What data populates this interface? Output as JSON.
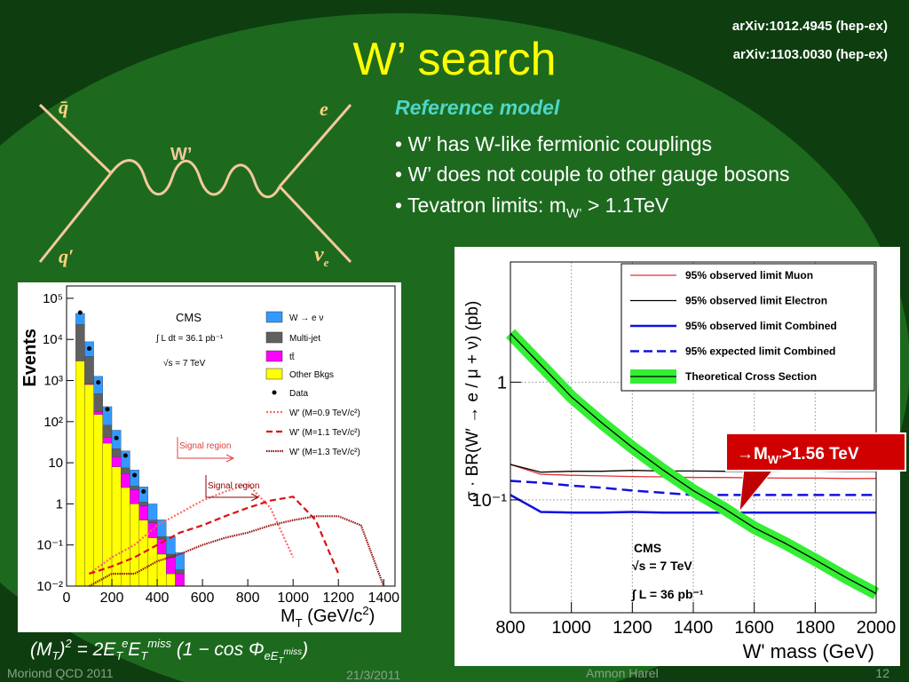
{
  "slide": {
    "title": "W’ search",
    "refs": [
      "arXiv:1012.4945 (hep-ex)",
      "arXiv:1103.0030 (hep-ex)"
    ],
    "diagram": {
      "q_bar": "q̄",
      "e": "e",
      "q_prime": "q′",
      "nu": "ν",
      "nu_sub": "e",
      "boson": "W’"
    },
    "reference_heading": "Reference model",
    "bullets": [
      [
        "•  W’ has W-like fermionic couplings"
      ],
      [
        "• W’ does not couple to other gauge bosons"
      ],
      [
        "• Tevatron limits: m",
        "W’",
        " > 1.1TeV"
      ]
    ],
    "callout": [
      "→M",
      "W’",
      ">1.56 TeV"
    ],
    "formula": [
      "(M",
      "T",
      ")",
      "2",
      " = 2E",
      "T",
      "e",
      "E",
      "T",
      "miss",
      " (1 − cos Φ",
      "eE",
      "T",
      "miss",
      ")"
    ],
    "footer": {
      "conference": "Moriond QCD 2011",
      "date": "21/3/2011",
      "author": "Amnon Harel",
      "page": "12"
    }
  },
  "plots": [
    {
      "type": "histogram",
      "stacked": true,
      "log_y": true,
      "ylabel": "Events",
      "xlabel": [
        "M",
        "T",
        " (GeV/c",
        "2",
        ")"
      ],
      "xlim": [
        0,
        1450
      ],
      "ylim": [
        0.01,
        200000
      ],
      "xticks": [
        0,
        200,
        400,
        600,
        800,
        1000,
        1200,
        1400
      ],
      "yticks": [
        {
          "value": 0.01,
          "label": "10⁻²"
        },
        {
          "value": 0.1,
          "label": "10⁻¹"
        },
        1,
        10,
        {
          "value": 100,
          "label": "10²"
        },
        {
          "value": 1000,
          "label": "10³"
        },
        {
          "value": 10000,
          "label": "10⁴"
        },
        {
          "value": 100000,
          "label": "10⁵"
        }
      ],
      "bins": [
        40,
        80,
        120,
        160,
        200,
        240,
        280,
        320,
        360,
        400,
        440,
        480,
        520
      ],
      "series": [
        {
          "name": "Other Bkgs",
          "color": "#ffff00",
          "values": [
            3000,
            800,
            150,
            30,
            8,
            2.5,
            1,
            0.4,
            0.15,
            0.06,
            0.02,
            0.01
          ]
        },
        {
          "name": "tt̄",
          "color": "#ff00ff",
          "values": [
            50,
            40,
            25,
            12,
            6,
            3,
            1.2,
            0.5,
            0.2,
            0.08,
            0.03,
            0.01
          ]
        },
        {
          "name": "Multi-jet",
          "color": "#606060",
          "values": [
            20000,
            3000,
            300,
            40,
            8,
            2,
            0.5,
            0.2,
            0.05,
            0.02,
            0.01,
            0.005
          ]
        },
        {
          "name": "W → e ν",
          "color": "#3399ff",
          "values": [
            20000,
            5000,
            800,
            150,
            40,
            12,
            4,
            1.5,
            0.6,
            0.25,
            0.1,
            0.04
          ]
        }
      ],
      "data": {
        "name": "Data",
        "x": [
          60,
          100,
          140,
          180,
          220,
          260,
          300,
          340
        ],
        "values": [
          45000,
          6000,
          900,
          200,
          40,
          15,
          5,
          2
        ]
      },
      "signal_x": [
        100,
        200,
        300,
        400,
        500,
        600,
        700,
        800,
        900,
        1000,
        1100,
        1200,
        1300,
        1400
      ],
      "signals": [
        {
          "name": "W' (M=0.9 TeV/c²)",
          "color": "#ff6666",
          "values": [
            0.02,
            0.05,
            0.1,
            0.3,
            0.6,
            1.2,
            2,
            3,
            0.8,
            0.05,
            null,
            null,
            null,
            null
          ]
        },
        {
          "name": "W' (M=1.1 TeV/c²)",
          "color": "#dd1111",
          "values": [
            0.02,
            0.03,
            0.05,
            0.1,
            0.2,
            0.3,
            0.5,
            0.8,
            1.2,
            1.5,
            0.4,
            0.02,
            null,
            null
          ]
        },
        {
          "name": "W' (M=1.3 TeV/c²)",
          "color": "#991111",
          "values": [
            0.01,
            0.02,
            0.02,
            0.04,
            0.06,
            0.1,
            0.15,
            0.2,
            0.3,
            0.4,
            0.5,
            0.5,
            0.3,
            0.01
          ]
        }
      ],
      "annotations": [
        "CMS",
        "∫ L dt = 36.1 pb⁻¹",
        "√s = 7 TeV",
        "Signal region",
        "Signal region"
      ]
    },
    {
      "type": "line",
      "log_y": true,
      "grid": true,
      "ylabel": "σ · BR(W′ → e / μ + ν) (pb)",
      "xlabel": "W' mass (GeV)",
      "xlim": [
        800,
        2000
      ],
      "ylim": [
        0.011,
        10.5
      ],
      "xticks": [
        800,
        1000,
        1200,
        1400,
        1600,
        1800,
        2000
      ],
      "yticks": [
        {
          "value": 0.1,
          "label": "10⁻¹"
        },
        1
      ],
      "x": [
        800,
        900,
        1000,
        1100,
        1200,
        1300,
        1400,
        1500,
        1600,
        1700,
        1800,
        1900,
        2000
      ],
      "series": [
        {
          "name": "95% observed limit Muon",
          "color": "#e03030",
          "values": [
            0.2,
            0.165,
            0.162,
            0.16,
            0.158,
            0.157,
            0.155,
            0.155,
            0.154,
            0.153,
            0.153,
            0.152,
            0.152
          ]
        },
        {
          "name": "95% observed limit Electron",
          "color": "#000000",
          "values": [
            0.2,
            0.172,
            0.175,
            0.175,
            0.178,
            0.176,
            0.176,
            0.175,
            0.175,
            0.176,
            0.176,
            0.175,
            0.175
          ]
        },
        {
          "name": "95% observed limit Combined",
          "color": "#1010e0",
          "values": [
            0.11,
            0.079,
            0.078,
            0.078,
            0.079,
            0.078,
            0.078,
            0.078,
            0.078,
            0.078,
            0.078,
            0.078,
            0.078
          ]
        },
        {
          "name": "95% expected limit Combined",
          "color": "#1010e0",
          "dashed": true,
          "values": [
            0.145,
            0.14,
            0.132,
            0.127,
            0.12,
            0.115,
            0.11,
            0.11,
            0.11,
            0.11,
            0.11,
            0.11,
            0.11
          ]
        },
        {
          "name": "Theoretical Cross Section",
          "color": "#000000",
          "band_color": "#33ee33",
          "values": [
            2.6,
            1.4,
            0.75,
            0.45,
            0.28,
            0.18,
            0.12,
            0.085,
            0.058,
            0.043,
            0.031,
            0.022,
            0.016
          ]
        }
      ],
      "annotations": [
        "CMS",
        "√s = 7 TeV",
        "∫ L = 36 pb⁻¹"
      ]
    }
  ]
}
